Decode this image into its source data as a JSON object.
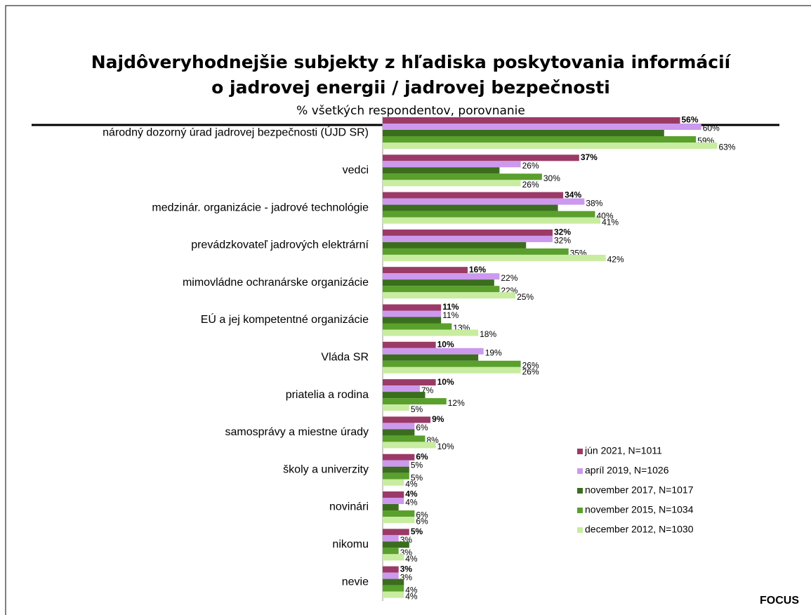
{
  "chart_data": {
    "type": "hbar",
    "title": [
      "Najdôveryhodnejšie subjekty z hľadiska poskytovania informácií",
      "o jadrovej energii / jadrovej bezpečnosti"
    ],
    "subtitle": "% všetkých respondentov, porovnanie",
    "source": "FOCUS",
    "categories": [
      "národný dozorný úrad jadrovej bezpečnosti (ÚJD SR)",
      "vedci",
      "medzinár. organizácie - jadrové technológie",
      "prevádzkovateľ jadrových elektrární",
      "mimovládne ochranárske organizácie",
      "EÚ a jej kompetentné organizácie",
      "Vláda SR",
      "priatelia a rodina",
      "samosprávy a miestne úrady",
      "školy a univerzity",
      "novinári",
      "nikomu",
      "nevie"
    ],
    "xlim": [
      0,
      80
    ],
    "legend": "lower right",
    "series": [
      {
        "name": "jún 2021, N=1011",
        "color": "#9b3a66",
        "values": [
          56,
          37,
          34,
          32,
          16,
          11,
          10,
          10,
          9,
          6,
          4,
          5,
          3
        ],
        "value_labels": [
          "56%",
          "37%",
          "34%",
          "32%",
          "16%",
          "11%",
          "10%",
          "10%",
          "9%",
          "6%",
          "4%",
          "5%",
          "3%"
        ]
      },
      {
        "name": "apríl 2019, N=1026",
        "color": "#cc99ee",
        "values": [
          60,
          26,
          38,
          32,
          22,
          11,
          19,
          7,
          6,
          5,
          4,
          3,
          3
        ],
        "value_labels": [
          "60%",
          "26%",
          "38%",
          "32%",
          "22%",
          "11%",
          "19%",
          "7%",
          "6%",
          "5%",
          "4%",
          "3%",
          "3%"
        ]
      },
      {
        "name": "november 2017, N=1017",
        "color": "#3a6e1e",
        "values": [
          53,
          22,
          33,
          27,
          21,
          11,
          18,
          8,
          6,
          5,
          3,
          5,
          4
        ]
      },
      {
        "name": "november 2015, N=1034",
        "color": "#5aa02c",
        "values": [
          59,
          30,
          40,
          35,
          22,
          13,
          26,
          12,
          8,
          5,
          6,
          3,
          4
        ],
        "value_labels": [
          "59%",
          "30%",
          "40%",
          "35%",
          "22%",
          "13%",
          "26%",
          "12%",
          "8%",
          "5%",
          "6%",
          "3%",
          "4%"
        ]
      },
      {
        "name": "december 2012, N=1030",
        "color": "#c8eca0",
        "values": [
          63,
          26,
          41,
          42,
          25,
          18,
          26,
          5,
          10,
          4,
          6,
          4,
          4
        ],
        "value_labels": [
          "63%",
          "26%",
          "41%",
          "42%",
          "25%",
          "18%",
          "26%",
          "5%",
          "10%",
          "4%",
          "6%",
          "4%",
          "4%"
        ]
      }
    ]
  }
}
